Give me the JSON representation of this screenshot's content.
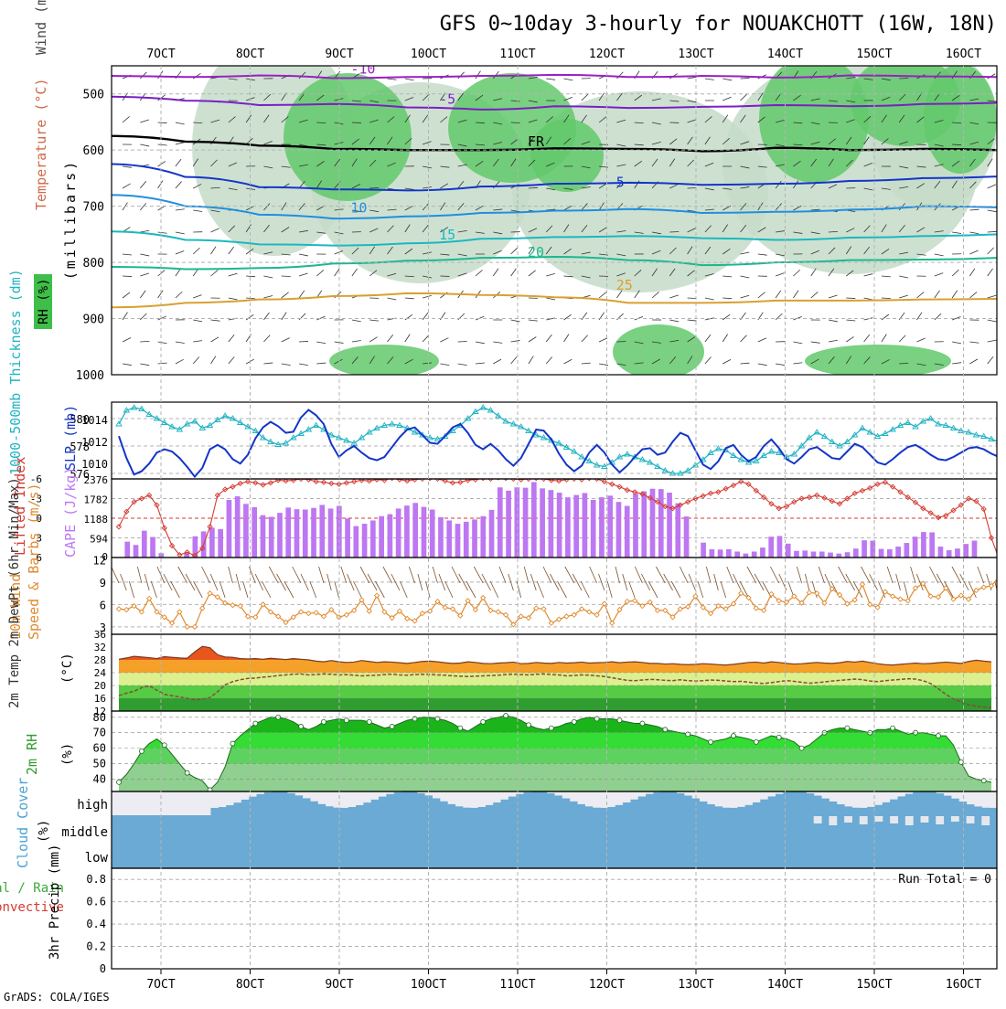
{
  "page": {
    "title": "GFS 0~10day 3-hourly for NOUAKCHOTT (16W, 18N)",
    "credit": "GrADS: COLA/IGES"
  },
  "colors": {
    "rh_fill": "#61c96b",
    "rh_fill_light": "#c5dcc9",
    "slp": "#1435c8",
    "thickness": "#22b4c4",
    "cape": "#bd77f2",
    "lifted_index": "#d53a32",
    "wind_speed": "#e08a2e",
    "barbs": "#7a5230",
    "temp_fill": "#f5a028",
    "rh2m_fill": "#3dcc3d",
    "cloud": "#6aaad4",
    "grid": "#b4b4b4"
  },
  "chart_data": [
    {
      "id": "upper_air",
      "type": "heatmap",
      "title": "Upper air RH, temperature and wind",
      "ylabel": "(millibars)",
      "side_labels": [
        "Wind (m/s)",
        "Temperature (°C)",
        "RH (%)"
      ],
      "x_ticks": [
        "7OCT",
        "8OCT",
        "9OCT",
        "10OCT",
        "11OCT",
        "12OCT",
        "13OCT",
        "14OCT",
        "15OCT",
        "16OCT"
      ],
      "y_ticks": [
        500,
        600,
        700,
        800,
        900,
        1000
      ],
      "ylim": [
        1000,
        450
      ],
      "isotherms": [
        {
          "label": "-10",
          "level": [
            468,
            470,
            467,
            472,
            470,
            468,
            466,
            470,
            468,
            471,
            467,
            469,
            470
          ]
        },
        {
          "label": "-5",
          "level": [
            505,
            512,
            520,
            518,
            524,
            528,
            522,
            525,
            523,
            520,
            522,
            518,
            516
          ]
        },
        {
          "label": "FR",
          "level": [
            575,
            585,
            592,
            598,
            600,
            600,
            597,
            598,
            602,
            596,
            600,
            598,
            600
          ]
        },
        {
          "label": "5",
          "level": [
            625,
            648,
            666,
            670,
            672,
            665,
            660,
            658,
            662,
            660,
            655,
            650,
            647
          ]
        },
        {
          "label": "10",
          "level": [
            680,
            700,
            715,
            722,
            718,
            712,
            708,
            705,
            712,
            710,
            706,
            700,
            702
          ]
        },
        {
          "label": "15",
          "level": [
            745,
            760,
            768,
            770,
            766,
            758,
            755,
            753,
            757,
            760,
            756,
            753,
            750
          ]
        },
        {
          "label": "20",
          "level": [
            808,
            812,
            810,
            802,
            797,
            792,
            790,
            796,
            805,
            800,
            796,
            795,
            792
          ]
        },
        {
          "label": "25",
          "level": [
            880,
            872,
            866,
            860,
            855,
            858,
            862,
            872,
            872,
            868,
            868,
            866,
            865
          ]
        }
      ],
      "rh_contours": [
        "30",
        "50"
      ]
    },
    {
      "id": "slp_thickness",
      "type": "line",
      "left_label": "1000-500mb Thickness (dm)",
      "right_label": "SLP (mb)",
      "left_ticks": [
        "580",
        "578",
        "576"
      ],
      "right_ticks": [
        "1014",
        "1012",
        "1010"
      ],
      "thickness_dm": [
        579.6,
        580.6,
        580.8,
        580.7,
        580.3,
        580.0,
        579.7,
        579.4,
        579.2,
        579.6,
        579.8,
        579.3,
        579.5,
        579.9,
        580.2,
        580.0,
        579.7,
        579.4,
        579.1,
        578.6,
        578.3,
        578.1,
        578.2,
        578.6,
        578.9,
        579.2,
        579.5,
        579.2,
        578.8,
        578.6,
        578.4,
        578.2,
        578.6,
        579.0,
        579.3,
        579.5,
        579.6,
        579.5,
        579.3,
        579.0,
        578.8,
        578.6,
        578.5,
        578.7,
        579.1,
        579.5,
        580.0,
        580.5,
        580.8,
        580.6,
        580.2,
        579.8,
        579.6,
        579.4,
        579.1,
        578.8,
        578.6,
        578.4,
        578.2,
        577.9,
        577.6,
        577.2,
        576.9,
        576.6,
        576.5,
        576.8,
        577.2,
        577.4,
        577.2,
        577.0,
        576.8,
        576.5,
        576.2,
        576.0,
        576.0,
        576.2,
        576.6,
        577.0,
        577.5,
        577.8,
        577.7,
        577.3,
        577.0,
        576.8,
        576.9,
        577.3,
        577.6,
        577.5,
        577.2,
        577.4,
        578.0,
        578.6,
        579.0,
        578.7,
        578.3,
        578.0,
        578.3,
        578.8,
        579.3,
        579.0,
        578.7,
        578.9,
        579.2,
        579.5,
        579.7,
        579.4,
        579.8,
        580.0,
        579.6,
        579.5,
        579.3,
        579.1,
        579.0,
        578.8,
        578.7,
        578.5,
        578.3,
        578.4
      ],
      "slp_mb": [
        1012.5,
        1010.5,
        1009.0,
        1009.3,
        1010.0,
        1011.0,
        1011.3,
        1011.1,
        1010.5,
        1009.7,
        1008.8,
        1009.6,
        1011.3,
        1011.7,
        1011.3,
        1010.4,
        1010.0,
        1010.8,
        1012.3,
        1013.3,
        1013.8,
        1013.4,
        1012.8,
        1012.9,
        1014.2,
        1014.9,
        1014.4,
        1013.6,
        1011.8,
        1010.6,
        1011.2,
        1011.6,
        1011.0,
        1010.5,
        1010.3,
        1010.6,
        1011.5,
        1012.4,
        1013.1,
        1013.3,
        1012.6,
        1011.9,
        1011.8,
        1012.5,
        1013.3,
        1013.6,
        1012.8,
        1011.7,
        1011.3,
        1011.8,
        1011.2,
        1010.4,
        1009.8,
        1010.5,
        1011.8,
        1013.1,
        1013.0,
        1012.2,
        1010.9,
        1009.9,
        1009.3,
        1009.8,
        1011.0,
        1011.7,
        1011.0,
        1009.9,
        1009.2,
        1009.8,
        1010.6,
        1011.3,
        1011.4,
        1010.8,
        1011.0,
        1012.0,
        1012.8,
        1012.5,
        1011.2,
        1009.9,
        1009.5,
        1010.2,
        1011.4,
        1011.7,
        1010.8,
        1010.2,
        1010.6,
        1011.6,
        1012.2,
        1011.4,
        1010.4,
        1010.0,
        1010.6,
        1011.3,
        1011.5,
        1011.0,
        1010.5,
        1010.4,
        1011.1,
        1011.8,
        1011.5,
        1010.8,
        1010.1,
        1009.9,
        1010.4,
        1011.0,
        1011.5,
        1011.7,
        1011.3,
        1010.8,
        1010.4,
        1010.3,
        1010.6,
        1011.0,
        1011.4,
        1011.5,
        1011.3,
        1010.9,
        1010.6,
        1010.4
      ]
    },
    {
      "id": "cape_li",
      "type": "bar",
      "left_label": "Lifted Index",
      "right_label": "CAPE (J/kg)",
      "left_ticks": [
        "-6",
        "-3",
        "0",
        "3",
        "6"
      ],
      "right_ticks": [
        "2376",
        "1782",
        "1188",
        "594",
        "0"
      ],
      "cape": [
        0,
        480,
        380,
        810,
        620,
        130,
        0,
        0,
        130,
        640,
        790,
        900,
        860,
        1740,
        1850,
        1620,
        1520,
        1280,
        1230,
        1350,
        1510,
        1460,
        1450,
        1500,
        1590,
        1480,
        1560,
        1180,
        950,
        1020,
        1120,
        1250,
        1310,
        1480,
        1570,
        1650,
        1530,
        1450,
        1220,
        1120,
        1020,
        1080,
        1150,
        1250,
        1440,
        2120,
        2020,
        2120,
        2110,
        2280,
        2090,
        2040,
        1960,
        1820,
        1890,
        1950,
        1740,
        1820,
        1870,
        1680,
        1560,
        1930,
        2000,
        2080,
        2070,
        1960,
        1640,
        1240,
        0,
        450,
        250,
        240,
        250,
        180,
        120,
        180,
        300,
        630,
        650,
        420,
        200,
        210,
        180,
        180,
        150,
        120,
        160,
        270,
        520,
        510,
        260,
        250,
        330,
        440,
        630,
        770,
        760,
        330,
        220,
        270,
        410,
        510,
        0,
        0
      ],
      "lifted_index": [
        1.3,
        -1.0,
        -2.5,
        -3.0,
        -3.5,
        -2.0,
        1.5,
        4.2,
        5.6,
        5.2,
        5.7,
        4.6,
        1.3,
        -3.5,
        -4.4,
        -4.8,
        -5.3,
        -5.6,
        -5.4,
        -5.1,
        -5.4,
        -5.8,
        -5.7,
        -5.8,
        -6.0,
        -5.9,
        -5.6,
        -5.5,
        -5.3,
        -5.2,
        -5.4,
        -5.6,
        -5.8,
        -5.7,
        -5.9,
        -5.8,
        -6.1,
        -5.9,
        -5.7,
        -5.9,
        -6.0,
        -6.1,
        -6.0,
        -5.7,
        -5.4,
        -5.5,
        -5.8,
        -5.9,
        -6.1,
        -6.0,
        -6.2,
        -6.1,
        -6.0,
        -5.9,
        -6.0,
        -6.1,
        -6.0,
        -5.8,
        -5.7,
        -5.9,
        -6.0,
        -5.9,
        -6.1,
        -6.0,
        -5.6,
        -5.2,
        -4.8,
        -4.3,
        -4.0,
        -3.7,
        -3.1,
        -2.5,
        -1.8,
        -1.5,
        -2.0,
        -2.5,
        -3.0,
        -3.4,
        -3.8,
        -4.0,
        -4.5,
        -5.0,
        -5.6,
        -5.2,
        -4.2,
        -3.2,
        -2.2,
        -1.5,
        -1.8,
        -2.5,
        -3.0,
        -3.2,
        -3.5,
        -3.1,
        -2.6,
        -2.2,
        -3.0,
        -3.8,
        -4.2,
        -4.6,
        -5.2,
        -5.5,
        -4.8,
        -4.0,
        -3.2,
        -2.4,
        -1.5,
        -0.8,
        -0.1,
        -0.4,
        -1.2,
        -2.0,
        -3.0,
        -2.6,
        -1.4,
        3.0,
        6.2
      ]
    },
    {
      "id": "wind10m",
      "type": "line",
      "left_label": "10m Wind",
      "right_label": "Speed & Barbs (m/s)",
      "y_ticks": [
        "12",
        "9",
        "6",
        "3"
      ],
      "ylim": [
        2,
        12
      ],
      "speed": [
        5.4,
        5.3,
        5.8,
        5.0,
        6.8,
        5.0,
        4.3,
        3.5,
        5.0,
        3.0,
        3.0,
        5.5,
        7.5,
        7.0,
        6.2,
        5.9,
        5.8,
        4.4,
        4.3,
        6.0,
        5.0,
        4.4,
        3.6,
        4.3,
        5.0,
        4.8,
        4.9,
        4.4,
        5.3,
        4.3,
        4.6,
        5.2,
        6.6,
        5.1,
        7.2,
        5.0,
        4.2,
        5.1,
        4.1,
        3.8,
        4.8,
        5.1,
        6.4,
        5.6,
        5.4,
        4.5,
        6.5,
        5.3,
        6.9,
        5.2,
        5.0,
        4.6,
        3.3,
        4.4,
        4.2,
        5.5,
        5.4,
        3.5,
        4.0,
        4.4,
        4.6,
        5.4,
        5.0,
        4.6,
        6.1,
        3.5,
        5.3,
        6.4,
        6.5,
        5.8,
        6.3,
        5.2,
        5.2,
        4.3,
        5.4,
        5.7,
        7.1,
        5.6,
        4.8,
        5.8,
        5.4,
        6.1,
        7.5,
        6.9,
        5.5,
        5.2,
        7.4,
        6.5,
        6.3,
        7.1,
        6.2,
        7.6,
        7.5,
        6.2,
        8.1,
        7.3,
        6.1,
        6.6,
        8.7,
        6.0,
        5.6,
        7.7,
        7.1,
        6.7,
        6.5,
        8.2,
        8.8,
        7.1,
        7.0,
        8.2,
        6.7,
        7.2,
        6.7,
        7.9,
        8.3,
        8.5,
        9.7,
        8.2
      ]
    },
    {
      "id": "temp2m",
      "type": "area",
      "left_label": "2m Temp 2m DewPt (6hr Min/Max)",
      "right_label": "(°C)",
      "y_ticks": [
        "36",
        "32",
        "28",
        "24",
        "20",
        "16",
        "12"
      ],
      "ylim": [
        12,
        36
      ],
      "temp": [
        28.2,
        28.6,
        29.1,
        28.9,
        28.7,
        28.4,
        29.0,
        28.8,
        28.6,
        28.5,
        30.5,
        32.2,
        31.8,
        29.6,
        28.9,
        28.8,
        28.4,
        28.3,
        28.4,
        28.2,
        28.5,
        28.3,
        28.1,
        28.4,
        28.2,
        28.0,
        27.6,
        27.4,
        27.8,
        27.4,
        27.2,
        27.3,
        27.8,
        27.5,
        27.2,
        27.4,
        27.3,
        27.1,
        26.9,
        27.2,
        27.5,
        27.6,
        27.4,
        27.1,
        26.9,
        27.0,
        27.4,
        27.2,
        26.9,
        26.8,
        27.0,
        27.1,
        27.3,
        26.8,
        26.9,
        27.2,
        27.0,
        26.9,
        27.2,
        27.0,
        27.1,
        27.3,
        27.0,
        27.1,
        27.2,
        27.4,
        27.1,
        27.3,
        27.4,
        27.2,
        26.9,
        26.9,
        26.7,
        26.8,
        26.6,
        26.5,
        26.6,
        26.8,
        26.7,
        26.5,
        26.4,
        26.6,
        26.9,
        27.2,
        27.3,
        27.0,
        27.4,
        27.2,
        26.9,
        26.7,
        26.8,
        27.0,
        27.2,
        27.0,
        26.9,
        27.1,
        27.5,
        27.3,
        27.6,
        27.2,
        26.8,
        26.5,
        26.4,
        26.6,
        26.8,
        27.0,
        26.8,
        26.9,
        27.1,
        27.3,
        27.1,
        26.9,
        27.5,
        27.9,
        27.6,
        27.4
      ],
      "dewpoint": [
        16.8,
        17.6,
        18.2,
        19.3,
        19.9,
        18.5,
        17.2,
        16.8,
        16.4,
        16.0,
        15.5,
        15.8,
        16.2,
        18.0,
        20.2,
        21.2,
        21.8,
        22.2,
        22.3,
        22.6,
        22.8,
        23.1,
        23.3,
        23.5,
        23.6,
        23.3,
        23.4,
        23.6,
        23.5,
        23.3,
        23.4,
        23.2,
        23.0,
        23.1,
        23.2,
        23.4,
        23.5,
        23.3,
        23.2,
        23.4,
        23.5,
        23.4,
        23.3,
        23.2,
        23.0,
        22.9,
        22.8,
        22.9,
        23.0,
        23.1,
        23.2,
        23.4,
        23.5,
        23.4,
        23.3,
        23.5,
        23.6,
        23.4,
        23.3,
        23.0,
        23.1,
        23.3,
        23.2,
        23.0,
        22.8,
        22.4,
        22.0,
        21.6,
        21.5,
        21.7,
        21.9,
        21.8,
        21.6,
        21.5,
        21.8,
        21.5,
        21.4,
        21.5,
        21.7,
        21.6,
        21.4,
        21.2,
        21.3,
        21.0,
        20.8,
        20.6,
        20.9,
        21.2,
        21.5,
        21.3,
        21.0,
        20.7,
        20.9,
        21.1,
        21.4,
        21.6,
        21.8,
        22.0,
        21.8,
        21.4,
        21.2,
        21.5,
        21.7,
        21.9,
        22.1,
        22.0,
        21.5,
        20.6,
        19.0,
        17.2,
        15.8,
        14.9,
        14.0,
        13.5,
        13.2,
        13.1
      ]
    },
    {
      "id": "rh2m",
      "type": "area",
      "left_label": "2m RH",
      "right_label": "(%)",
      "y_ticks": [
        "80",
        "70",
        "60",
        "50",
        "40"
      ],
      "ylim": [
        32,
        84
      ],
      "rh": [
        38,
        43,
        50,
        58,
        63,
        66,
        62,
        56,
        50,
        44,
        41,
        39,
        33,
        38,
        48,
        63,
        68,
        72,
        76,
        78,
        80,
        80,
        79,
        77,
        74,
        72,
        74,
        77,
        78,
        79,
        78,
        78,
        78,
        77,
        75,
        73,
        74,
        76,
        78,
        79,
        80,
        80,
        79,
        78,
        76,
        73,
        71,
        74,
        77,
        79,
        80,
        81,
        80,
        78,
        75,
        73,
        72,
        73,
        74,
        76,
        77,
        79,
        80,
        79,
        79,
        79,
        78,
        77,
        76,
        76,
        75,
        74,
        72,
        71,
        70,
        69,
        68,
        66,
        64,
        65,
        66,
        68,
        67,
        66,
        64,
        66,
        68,
        67,
        66,
        64,
        60,
        62,
        66,
        70,
        72,
        73,
        73,
        72,
        71,
        70,
        72,
        72,
        73,
        71,
        69,
        70,
        70,
        69,
        68,
        68,
        62,
        51,
        42,
        40,
        39,
        38
      ]
    },
    {
      "id": "cloud",
      "type": "heatmap",
      "left_label": "Cloud Cover",
      "right_label": "(%)",
      "rows": [
        "high",
        "middle",
        "low"
      ]
    },
    {
      "id": "precip",
      "type": "bar",
      "left_label": "Total / Rain",
      "left_label2": "Convective",
      "right_label": "3hr Precip (mm)",
      "y_ticks": [
        "0.8",
        "0.6",
        "0.4",
        "0.2",
        "0"
      ],
      "run_total_label": "Run Total = 0",
      "values": []
    }
  ],
  "x_axis": {
    "ticks": [
      "7OCT",
      "8OCT",
      "9OCT",
      "10OCT",
      "11OCT",
      "12OCT",
      "13OCT",
      "14OCT",
      "15OCT",
      "16OCT"
    ]
  }
}
